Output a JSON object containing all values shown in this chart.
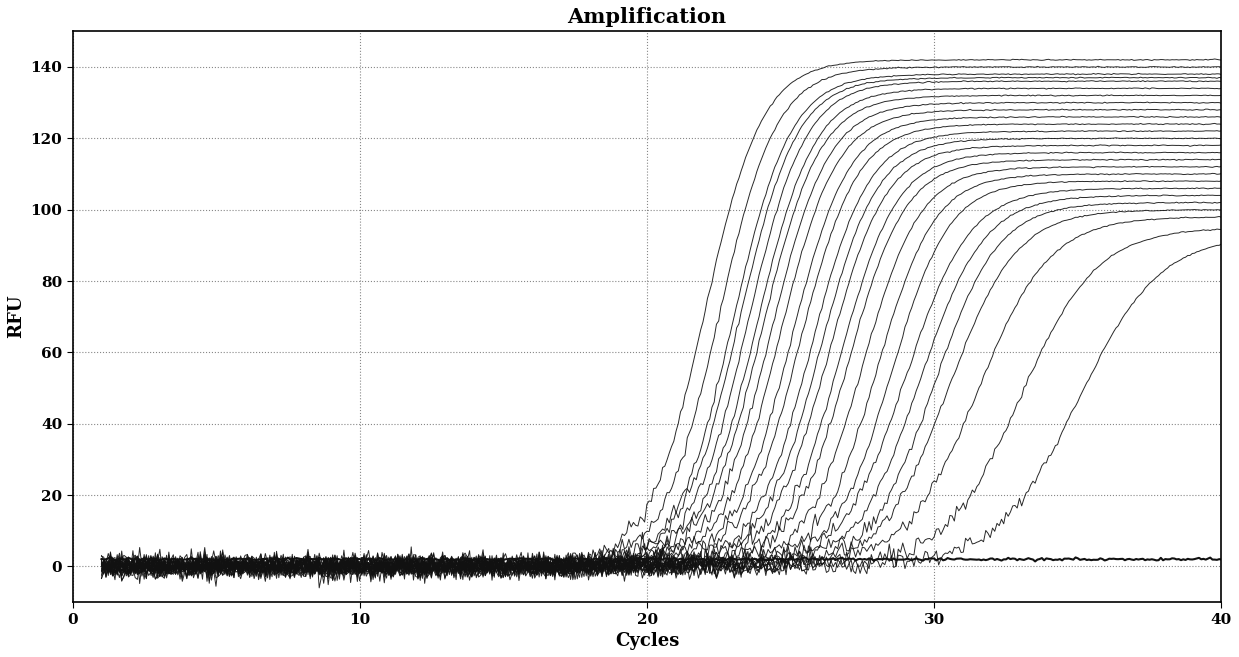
{
  "title": "Amplification",
  "xlabel": "Cycles",
  "ylabel": "RFU",
  "xlim": [
    0,
    40
  ],
  "ylim": [
    -10,
    150
  ],
  "xticks": [
    0,
    10,
    20,
    30,
    40
  ],
  "yticks": [
    0,
    20,
    40,
    60,
    80,
    100,
    120,
    140
  ],
  "background_color": "#ffffff",
  "line_color": "#111111",
  "grid_color": "#555555",
  "title_fontsize": 15,
  "label_fontsize": 13,
  "curves": [
    {
      "midpoint": 22.0,
      "L": 142,
      "k": 1.0
    },
    {
      "midpoint": 22.5,
      "L": 140,
      "k": 1.0
    },
    {
      "midpoint": 23.0,
      "L": 138,
      "k": 1.0
    },
    {
      "midpoint": 23.2,
      "L": 137,
      "k": 1.0
    },
    {
      "midpoint": 23.5,
      "L": 136,
      "k": 1.0
    },
    {
      "midpoint": 23.8,
      "L": 134,
      "k": 1.0
    },
    {
      "midpoint": 24.0,
      "L": 132,
      "k": 1.0
    },
    {
      "midpoint": 24.3,
      "L": 130,
      "k": 1.0
    },
    {
      "midpoint": 24.6,
      "L": 128,
      "k": 1.0
    },
    {
      "midpoint": 25.0,
      "L": 126,
      "k": 1.0
    },
    {
      "midpoint": 25.3,
      "L": 124,
      "k": 1.0
    },
    {
      "midpoint": 25.7,
      "L": 122,
      "k": 1.0
    },
    {
      "midpoint": 26.0,
      "L": 120,
      "k": 1.0
    },
    {
      "midpoint": 26.3,
      "L": 118,
      "k": 1.0
    },
    {
      "midpoint": 26.7,
      "L": 116,
      "k": 1.0
    },
    {
      "midpoint": 27.0,
      "L": 114,
      "k": 1.0
    },
    {
      "midpoint": 27.5,
      "L": 112,
      "k": 1.0
    },
    {
      "midpoint": 28.0,
      "L": 110,
      "k": 1.0
    },
    {
      "midpoint": 28.5,
      "L": 108,
      "k": 1.0
    },
    {
      "midpoint": 29.0,
      "L": 106,
      "k": 0.9
    },
    {
      "midpoint": 29.5,
      "L": 104,
      "k": 0.9
    },
    {
      "midpoint": 30.0,
      "L": 102,
      "k": 0.9
    },
    {
      "midpoint": 30.5,
      "L": 100,
      "k": 0.85
    },
    {
      "midpoint": 31.5,
      "L": 98,
      "k": 0.8
    },
    {
      "midpoint": 33.0,
      "L": 95,
      "k": 0.75
    },
    {
      "midpoint": 35.0,
      "L": 93,
      "k": 0.7
    }
  ],
  "flat_line_y": 2.0,
  "baseline_noise_std": 1.5,
  "baseline_range": [
    -7,
    7
  ]
}
